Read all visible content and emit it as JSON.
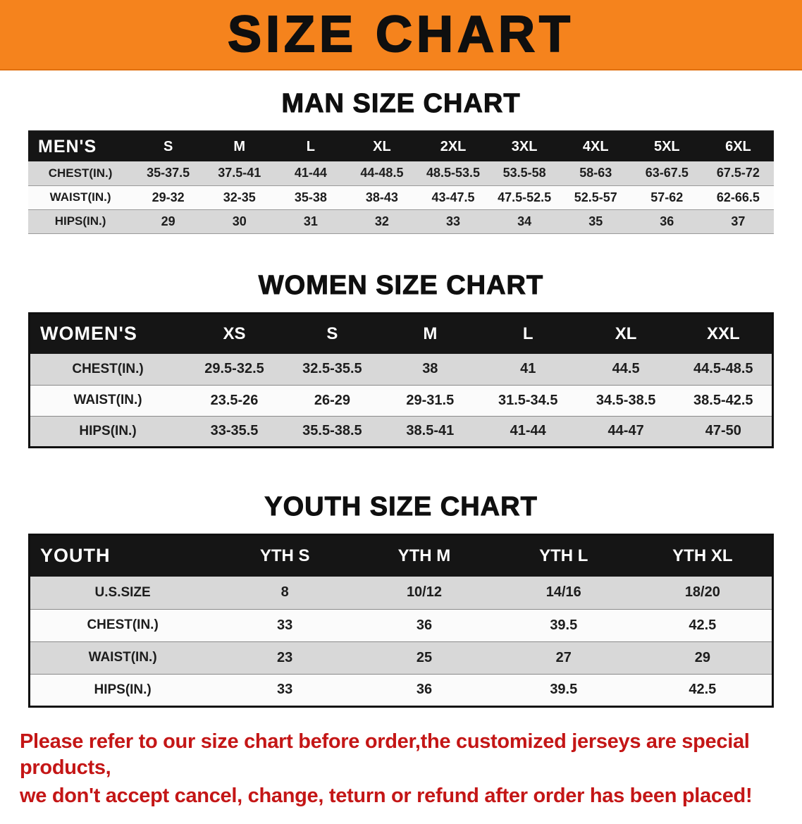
{
  "banner": {
    "title": "SIZE CHART",
    "bg_color": "#F5831D"
  },
  "colors": {
    "header_black": "#151515",
    "row_gray": "#D8D8D8",
    "row_white": "#FBFBFB",
    "footer_red": "#C41616"
  },
  "sections": [
    {
      "heading": "MAN SIZE CHART",
      "table": {
        "name": "mens-size-table",
        "header": [
          "MEN'S",
          "S",
          "M",
          "L",
          "XL",
          "2XL",
          "3XL",
          "4XL",
          "5XL",
          "6XL"
        ],
        "rows": [
          {
            "label": "CHEST(IN.)",
            "values": [
              "35-37.5",
              "37.5-41",
              "41-44",
              "44-48.5",
              "48.5-53.5",
              "53.5-58",
              "58-63",
              "63-67.5",
              "67.5-72"
            ]
          },
          {
            "label": "WAIST(IN.)",
            "values": [
              "29-32",
              "32-35",
              "35-38",
              "38-43",
              "43-47.5",
              "47.5-52.5",
              "52.5-57",
              "57-62",
              "62-66.5"
            ]
          },
          {
            "label": "HIPS(IN.)",
            "values": [
              "29",
              "30",
              "31",
              "32",
              "33",
              "34",
              "35",
              "36",
              "37"
            ]
          }
        ]
      }
    },
    {
      "heading": "WOMEN SIZE CHART",
      "table": {
        "name": "womens-size-table",
        "header": [
          "WOMEN'S",
          "XS",
          "S",
          "M",
          "L",
          "XL",
          "XXL"
        ],
        "rows": [
          {
            "label": "CHEST(IN.)",
            "values": [
              "29.5-32.5",
              "32.5-35.5",
              "38",
              "41",
              "44.5",
              "44.5-48.5"
            ]
          },
          {
            "label": "WAIST(IN.)",
            "values": [
              "23.5-26",
              "26-29",
              "29-31.5",
              "31.5-34.5",
              "34.5-38.5",
              "38.5-42.5"
            ]
          },
          {
            "label": "HIPS(IN.)",
            "values": [
              "33-35.5",
              "35.5-38.5",
              "38.5-41",
              "41-44",
              "44-47",
              "47-50"
            ]
          }
        ]
      }
    },
    {
      "heading": "YOUTH SIZE CHART",
      "table": {
        "name": "youth-size-table",
        "header": [
          "YOUTH",
          "YTH S",
          "YTH M",
          "YTH L",
          "YTH XL"
        ],
        "rows": [
          {
            "label": "U.S.SIZE",
            "values": [
              "8",
              "10/12",
              "14/16",
              "18/20"
            ]
          },
          {
            "label": "CHEST(IN.)",
            "values": [
              "33",
              "36",
              "39.5",
              "42.5"
            ]
          },
          {
            "label": "WAIST(IN.)",
            "values": [
              "23",
              "25",
              "27",
              "29"
            ]
          },
          {
            "label": "HIPS(IN.)",
            "values": [
              "33",
              "36",
              "39.5",
              "42.5"
            ]
          }
        ]
      }
    }
  ],
  "footer": {
    "line1": "Please refer to our size chart before order,the customized jerseys are special products,",
    "line2": "we don't accept cancel, change, teturn or refund after order has been placed!",
    "text_color": "#C41616"
  }
}
